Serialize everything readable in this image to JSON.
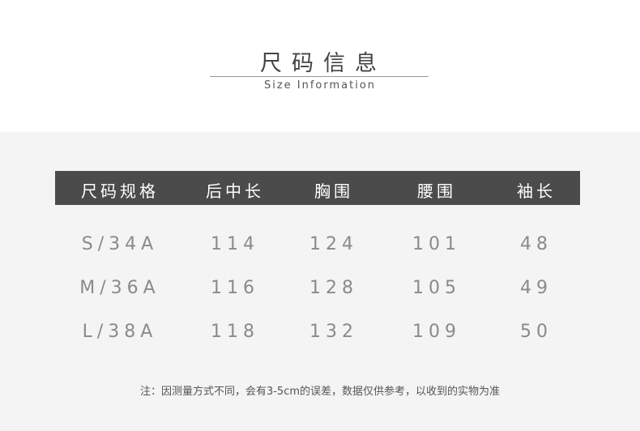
{
  "title": "尺码信息",
  "subtitle": "Size Information",
  "table": {
    "headers": [
      "尺码规格",
      "后中长",
      "胸围",
      "腰围",
      "袖长"
    ],
    "rows": [
      [
        "S/34A",
        "114",
        "124",
        "101",
        "48"
      ],
      [
        "M/36A",
        "116",
        "128",
        "105",
        "49"
      ],
      [
        "L/38A",
        "118",
        "132",
        "109",
        "50"
      ]
    ]
  },
  "note": "注：因测量方式不同，会有3-5cm的误差，数据仅供参考，以收到的实物为准"
}
